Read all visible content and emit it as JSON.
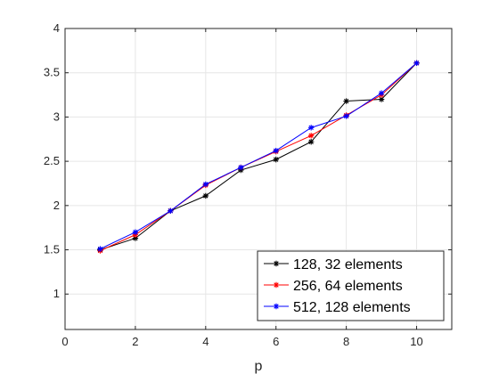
{
  "chart_data": {
    "type": "line",
    "xlabel": "p",
    "ylabel": "",
    "title": "",
    "xlim": [
      0,
      11
    ],
    "ylim": [
      0.6,
      4
    ],
    "xticks": [
      0,
      2,
      4,
      6,
      8,
      10
    ],
    "yticks": [
      1,
      1.5,
      2,
      2.5,
      3,
      3.5,
      4
    ],
    "xtick_labels": [
      "0",
      "2",
      "4",
      "6",
      "8",
      "10"
    ],
    "ytick_labels": [
      "1",
      "1.5",
      "2",
      "2.5",
      "3",
      "3.5",
      "4"
    ],
    "grid": true,
    "legend_position": "bottom-right",
    "marker": "*",
    "x": [
      1,
      2,
      3,
      4,
      5,
      6,
      7,
      8,
      9,
      10
    ],
    "series": [
      {
        "name": "128, 32 elements",
        "color": "#000000",
        "values": [
          1.5,
          1.63,
          1.94,
          2.11,
          2.4,
          2.52,
          2.72,
          3.18,
          3.2,
          3.61
        ]
      },
      {
        "name": "256, 64 elements",
        "color": "#ff0000",
        "values": [
          1.49,
          1.67,
          1.94,
          2.23,
          2.43,
          2.61,
          2.79,
          3.02,
          3.25,
          3.61
        ]
      },
      {
        "name": "512, 128 elements",
        "color": "#0000ff",
        "values": [
          1.51,
          1.7,
          1.94,
          2.24,
          2.43,
          2.62,
          2.88,
          3.01,
          3.27,
          3.61
        ]
      }
    ]
  }
}
